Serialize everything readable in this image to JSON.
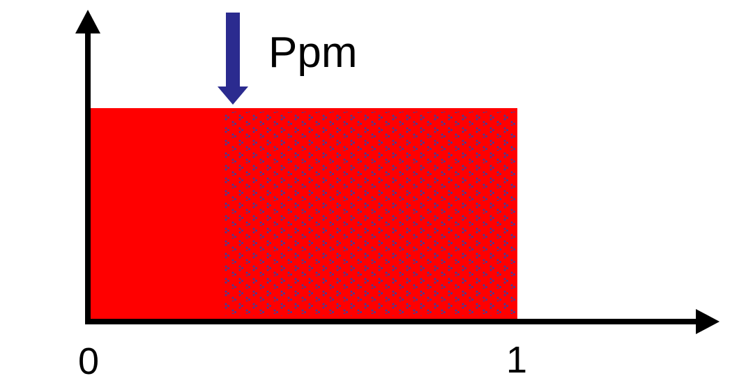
{
  "marker": {
    "label": "Ppm",
    "arrow_color": "#2b2b8f"
  },
  "axis": {
    "tick_start": "0",
    "tick_end": "1",
    "color": "#000000"
  },
  "fill": {
    "color": "#ff0000",
    "pattern_color": "#3f3f9b"
  }
}
